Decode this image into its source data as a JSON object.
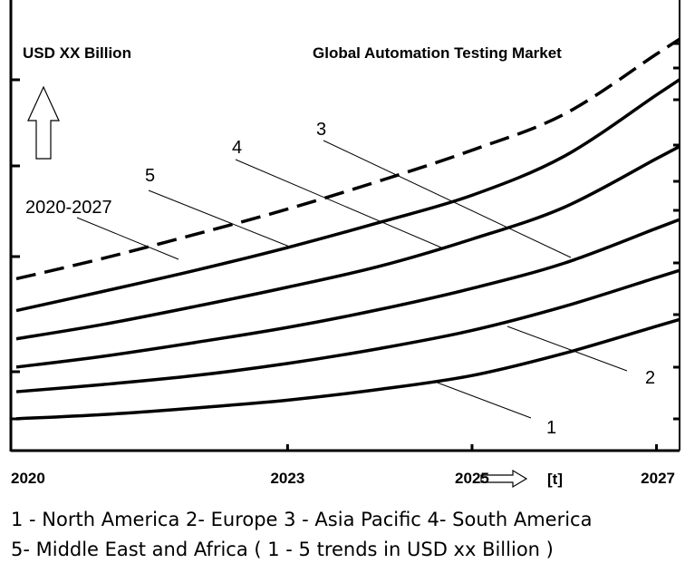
{
  "chart_data": {
    "type": "line",
    "title": "Global Automation Testing Market",
    "ylabel": "USD XX Billion",
    "xlabel": "[t]",
    "period_label": "2020-2027",
    "x_ticks": [
      "2020",
      "2023",
      "2025",
      "2027"
    ],
    "x": [
      2020,
      2021,
      2022,
      2023,
      2024,
      2025,
      2026,
      2027
    ],
    "series": [
      {
        "name": "1",
        "values": [
          0.53,
          0.6,
          0.71,
          0.84,
          1.02,
          1.25,
          1.62,
          2.07
        ],
        "dashed": false
      },
      {
        "name": "2",
        "values": [
          0.98,
          1.1,
          1.25,
          1.45,
          1.7,
          2.0,
          2.4,
          2.88
        ],
        "dashed": false
      },
      {
        "name": "3",
        "values": [
          1.39,
          1.57,
          1.8,
          2.05,
          2.35,
          2.7,
          3.12,
          3.7
        ],
        "dashed": false
      },
      {
        "name": "4",
        "values": [
          1.86,
          2.1,
          2.4,
          2.72,
          3.07,
          3.52,
          4.05,
          4.86
        ],
        "dashed": false
      },
      {
        "name": "5",
        "values": [
          2.33,
          2.65,
          3.0,
          3.38,
          3.8,
          4.25,
          4.9,
          5.92
        ],
        "dashed": false
      },
      {
        "name": "2020-2027",
        "values": [
          2.86,
          3.2,
          3.6,
          4.02,
          4.49,
          5.0,
          5.6,
          6.6
        ],
        "dashed": true
      }
    ],
    "ylim": [
      0,
      7.5
    ],
    "xlim": [
      2020,
      2027.25
    ],
    "grid": false
  },
  "legend": {
    "line1": "1 - North America  2- Europe  3 - Asia Pacific  4- South America",
    "line2": "5- Middle East and Africa  ( 1 - 5 trends in USD xx Billion )"
  },
  "colors": {
    "line": "#000000",
    "background": "#ffffff"
  }
}
